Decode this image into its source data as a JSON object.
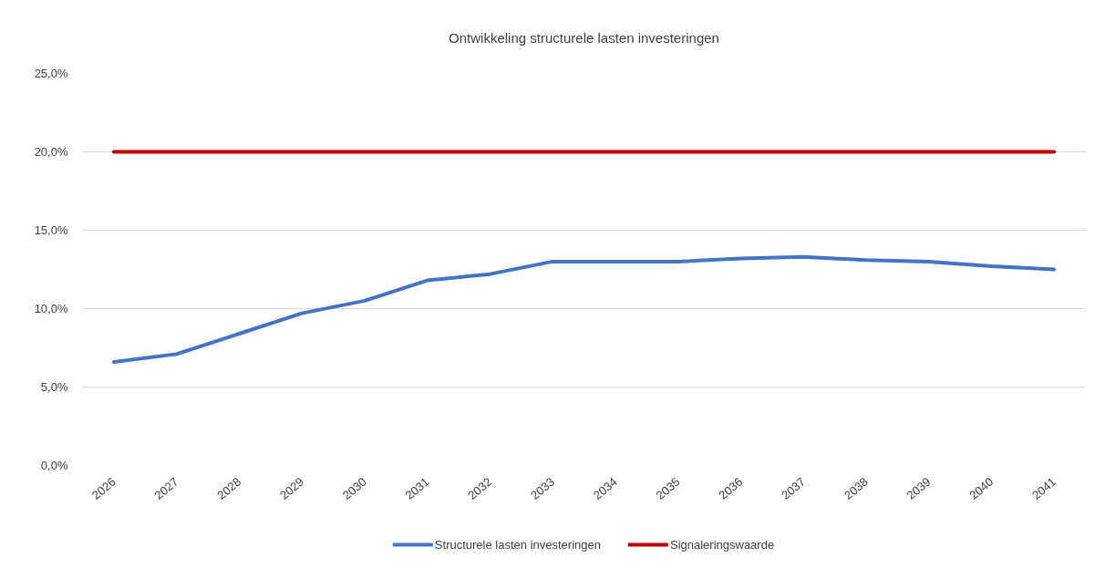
{
  "chart_data": {
    "type": "line",
    "title": "Ontwikkeling structurele lasten investeringen",
    "categories": [
      "2026",
      "2027",
      "2028",
      "2029",
      "2030",
      "2031",
      "2032",
      "2033",
      "2034",
      "2035",
      "2036",
      "2037",
      "2038",
      "2039",
      "2040",
      "2041"
    ],
    "series": [
      {
        "name": "Structurele lasten investeringen",
        "color": "#4472c4",
        "values": [
          6.6,
          7.1,
          8.4,
          9.7,
          10.5,
          11.8,
          12.2,
          13.0,
          13.0,
          13.0,
          13.2,
          13.3,
          13.1,
          13.0,
          12.7,
          12.5
        ]
      },
      {
        "name": "Signaleringswaarde",
        "color": "#c00000",
        "values": [
          20,
          20,
          20,
          20,
          20,
          20,
          20,
          20,
          20,
          20,
          20,
          20,
          20,
          20,
          20,
          20
        ]
      }
    ],
    "ylim": [
      0,
      25
    ],
    "yticks": [
      {
        "value": 0,
        "label": "0,0%"
      },
      {
        "value": 5,
        "label": "5,0%"
      },
      {
        "value": 10,
        "label": "10,0%"
      },
      {
        "value": 15,
        "label": "15,0%"
      },
      {
        "value": 20,
        "label": "20,0%"
      },
      {
        "value": 25,
        "label": "25,0%"
      }
    ],
    "grid": "y",
    "legend": "bottom",
    "marker": "none",
    "line_style": "solid"
  }
}
